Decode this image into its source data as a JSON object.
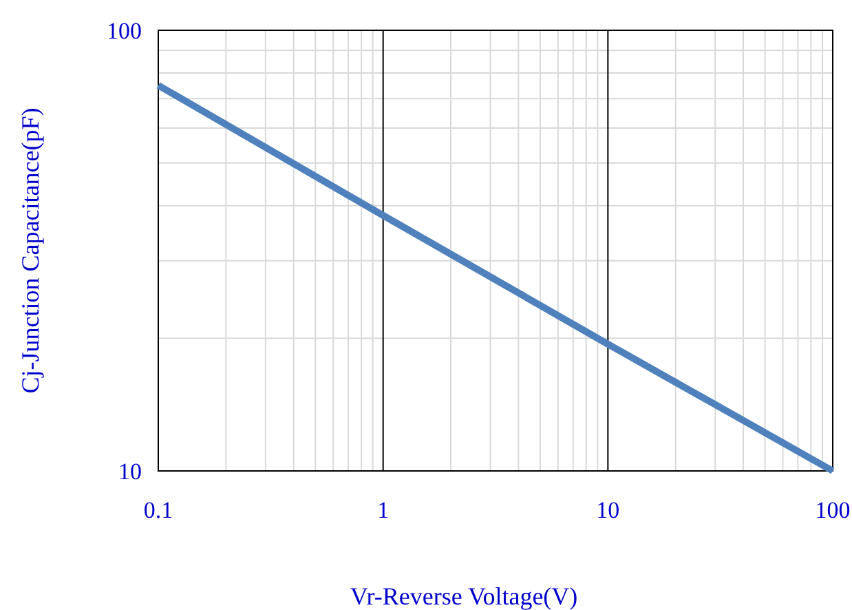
{
  "chart_data": {
    "type": "line",
    "xlabel": "Vr-Reverse Voltage(V)",
    "ylabel": "Cj-Junction Capacitance(pF)",
    "log": "xy",
    "grid": true,
    "marker": "none",
    "line_style": "solid",
    "xlim": [
      0.1,
      100
    ],
    "ylim": [
      10,
      100
    ],
    "xticks": [
      0.1,
      1,
      10,
      100
    ],
    "yticks": [
      10,
      100
    ],
    "x": [
      0.1,
      1,
      10,
      100
    ],
    "series": [
      {
        "color": "#4f81bd",
        "values": [
          75,
          38,
          19.4,
          10
        ]
      }
    ]
  }
}
